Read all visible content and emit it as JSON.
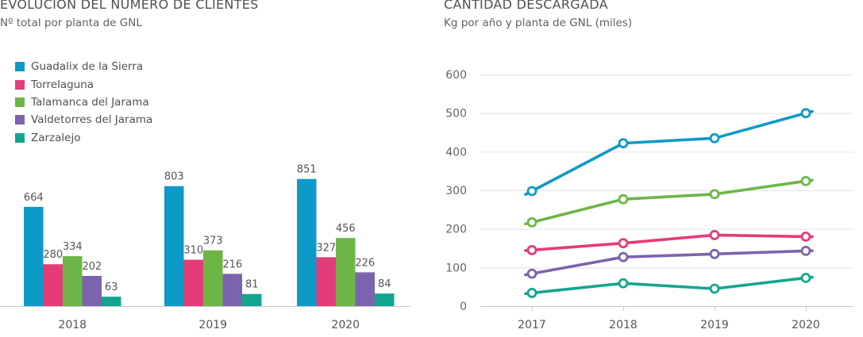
{
  "chart_data": [
    {
      "type": "bar",
      "title": "EVOLUCIÓN DEL NÚMERO DE CLIENTES",
      "subtitle": "Nº total por planta de GNL",
      "categories": [
        "2018",
        "2019",
        "2020"
      ],
      "series": [
        {
          "name": "Guadalix de la Sierra",
          "color": "#0e9ac8",
          "values": [
            664,
            803,
            851
          ]
        },
        {
          "name": "Torrelaguna",
          "color": "#e43c78",
          "values": [
            280,
            310,
            327
          ]
        },
        {
          "name": "Talamanca del Jarama",
          "color": "#6db646",
          "values": [
            334,
            373,
            456
          ]
        },
        {
          "name": "Valdetorres del Jarama",
          "color": "#7c63ad",
          "values": [
            202,
            216,
            226
          ]
        },
        {
          "name": "Zarzalejo",
          "color": "#14a58e",
          "values": [
            63,
            81,
            84
          ]
        }
      ],
      "xlabel": "",
      "ylabel": "",
      "ylim": [
        0,
        900
      ],
      "legend_position": "top-left",
      "data_labels": true,
      "grid": false
    },
    {
      "type": "line",
      "title": "CANTIDAD DESCARGADA",
      "subtitle": "Kg por año y planta de GNL (miles)",
      "x": [
        "2017",
        "2018",
        "2019",
        "2020"
      ],
      "series": [
        {
          "name": "Guadalix de la Sierra",
          "color": "#0e9ac8",
          "values": [
            298,
            422,
            435,
            500
          ]
        },
        {
          "name": "Talamanca del Jarama",
          "color": "#6db646",
          "values": [
            217,
            277,
            290,
            324
          ]
        },
        {
          "name": "Torrelaguna",
          "color": "#e43c78",
          "values": [
            145,
            163,
            184,
            180
          ]
        },
        {
          "name": "Valdetorres del Jarama",
          "color": "#7c63ad",
          "values": [
            84,
            127,
            135,
            143
          ]
        },
        {
          "name": "Zarzalejo",
          "color": "#14a58e",
          "values": [
            34,
            59,
            45,
            73
          ]
        }
      ],
      "yticks": [
        "0",
        "100",
        "200",
        "300",
        "400",
        "500",
        "600"
      ],
      "ylim": [
        0,
        600
      ],
      "xlabel": "",
      "ylabel": "",
      "grid": true
    }
  ]
}
